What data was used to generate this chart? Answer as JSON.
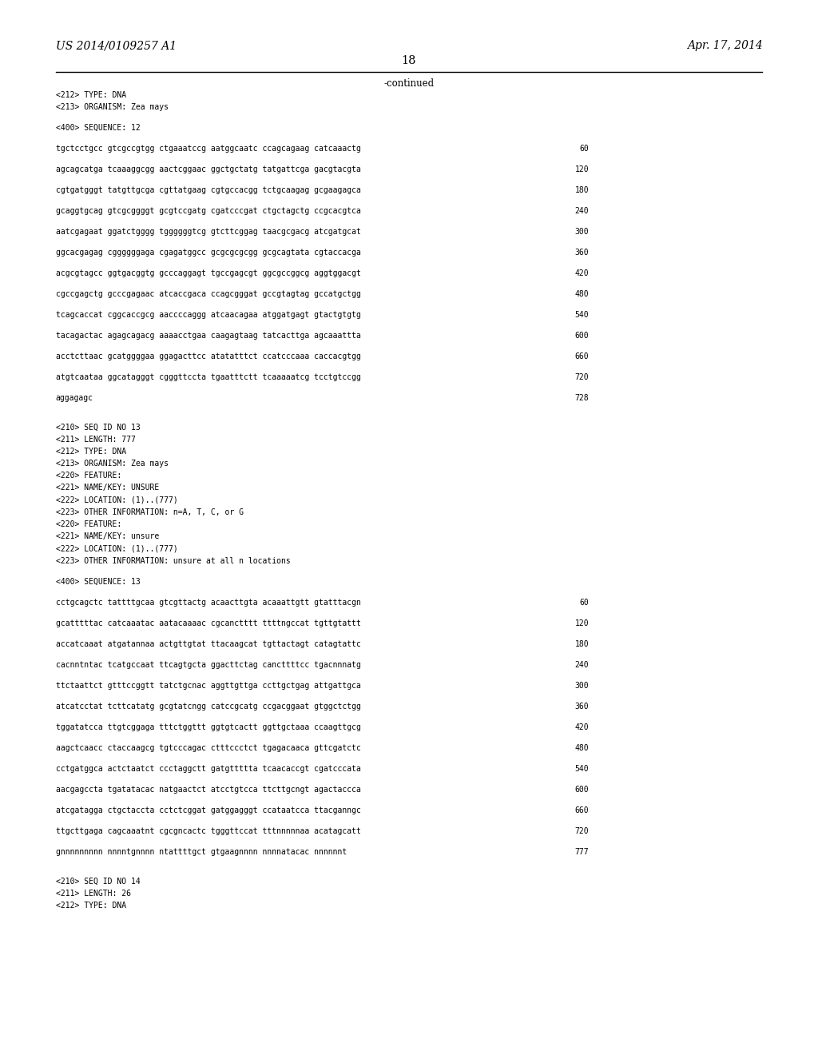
{
  "bg_color": "#ffffff",
  "top_left": "US 2014/0109257 A1",
  "top_right": "Apr. 17, 2014",
  "page_number": "18",
  "continued": "-continued",
  "content": [
    {
      "type": "text",
      "text": "<212> TYPE: DNA"
    },
    {
      "type": "text",
      "text": "<213> ORGANISM: Zea mays"
    },
    {
      "type": "blank"
    },
    {
      "type": "text",
      "text": "<400> SEQUENCE: 12"
    },
    {
      "type": "blank"
    },
    {
      "type": "seq",
      "text": "tgctcctgcc gtcgccgtgg ctgaaatccg aatggcaatc ccagcagaag catcaaactg",
      "num": "60"
    },
    {
      "type": "blank"
    },
    {
      "type": "seq",
      "text": "agcagcatga tcaaaggcgg aactcggaac ggctgctatg tatgattcga gacgtacgta",
      "num": "120"
    },
    {
      "type": "blank"
    },
    {
      "type": "seq",
      "text": "cgtgatgggt tatgttgcga cgttatgaag cgtgccacgg tctgcaagag gcgaagagca",
      "num": "180"
    },
    {
      "type": "blank"
    },
    {
      "type": "seq",
      "text": "gcaggtgcag gtcgcggggt gcgtccgatg cgatcccgat ctgctagctg ccgcacgtca",
      "num": "240"
    },
    {
      "type": "blank"
    },
    {
      "type": "seq",
      "text": "aatcgagaat ggatctgggg tggggggtcg gtcttcggag taacgcgacg atcgatgcat",
      "num": "300"
    },
    {
      "type": "blank"
    },
    {
      "type": "seq",
      "text": "ggcacgagag cggggggaga cgagatggcc gcgcgcgcgg gcgcagtata cgtaccacga",
      "num": "360"
    },
    {
      "type": "blank"
    },
    {
      "type": "seq",
      "text": "acgcgtagcc ggtgacggtg gcccaggagt tgccgagcgt ggcgccggcg aggtggacgt",
      "num": "420"
    },
    {
      "type": "blank"
    },
    {
      "type": "seq",
      "text": "cgccgagctg gcccgagaac atcaccgaca ccagcgggat gccgtagtag gccatgctgg",
      "num": "480"
    },
    {
      "type": "blank"
    },
    {
      "type": "seq",
      "text": "tcagcaccat cggcaccgcg aaccccaggg atcaacagaa atggatgagt gtactgtgtg",
      "num": "540"
    },
    {
      "type": "blank"
    },
    {
      "type": "seq",
      "text": "tacagactac agagcagacg aaaacctgaa caagagtaag tatcacttga agcaaattta",
      "num": "600"
    },
    {
      "type": "blank"
    },
    {
      "type": "seq",
      "text": "acctcttaac gcatggggaa ggagacttcc atatatttct ccatcccaaa caccacgtgg",
      "num": "660"
    },
    {
      "type": "blank"
    },
    {
      "type": "seq",
      "text": "atgtcaataa ggcatagggt cgggttccta tgaatttctt tcaaaaatcg tcctgtccgg",
      "num": "720"
    },
    {
      "type": "blank"
    },
    {
      "type": "seq",
      "text": "aggagagc",
      "num": "728"
    },
    {
      "type": "blank"
    },
    {
      "type": "blank"
    },
    {
      "type": "text",
      "text": "<210> SEQ ID NO 13"
    },
    {
      "type": "text",
      "text": "<211> LENGTH: 777"
    },
    {
      "type": "text",
      "text": "<212> TYPE: DNA"
    },
    {
      "type": "text",
      "text": "<213> ORGANISM: Zea mays"
    },
    {
      "type": "text",
      "text": "<220> FEATURE:"
    },
    {
      "type": "text",
      "text": "<221> NAME/KEY: UNSURE"
    },
    {
      "type": "text",
      "text": "<222> LOCATION: (1)..(777)"
    },
    {
      "type": "text",
      "text": "<223> OTHER INFORMATION: n=A, T, C, or G"
    },
    {
      "type": "text",
      "text": "<220> FEATURE:"
    },
    {
      "type": "text",
      "text": "<221> NAME/KEY: unsure"
    },
    {
      "type": "text",
      "text": "<222> LOCATION: (1)..(777)"
    },
    {
      "type": "text",
      "text": "<223> OTHER INFORMATION: unsure at all n locations"
    },
    {
      "type": "blank"
    },
    {
      "type": "text",
      "text": "<400> SEQUENCE: 13"
    },
    {
      "type": "blank"
    },
    {
      "type": "seq",
      "text": "cctgcagctc tattttgcaa gtcgttactg acaacttgta acaaattgtt gtatttacgn",
      "num": "60"
    },
    {
      "type": "blank"
    },
    {
      "type": "seq",
      "text": "gcatttttac catcaaatac aatacaaaac cgcanctttt ttttngccat tgttgtattt",
      "num": "120"
    },
    {
      "type": "blank"
    },
    {
      "type": "seq",
      "text": "accatcaaat atgatannaa actgttgtat ttacaagcat tgttactagt catagtattc",
      "num": "180"
    },
    {
      "type": "blank"
    },
    {
      "type": "seq",
      "text": "cacnntntac tcatgccaat ttcagtgcta ggacttctag cancttttcc tgacnnnatg",
      "num": "240"
    },
    {
      "type": "blank"
    },
    {
      "type": "seq",
      "text": "ttctaattct gtttccggtt tatctgcnac aggttgttga ccttgctgag attgattgca",
      "num": "300"
    },
    {
      "type": "blank"
    },
    {
      "type": "seq",
      "text": "atcatcctat tcttcatatg gcgtatcngg catccgcatg ccgacggaat gtggctctgg",
      "num": "360"
    },
    {
      "type": "blank"
    },
    {
      "type": "seq",
      "text": "tggatatcca ttgtcggaga tttctggttt ggtgtcactt ggttgctaaa ccaagttgcg",
      "num": "420"
    },
    {
      "type": "blank"
    },
    {
      "type": "seq",
      "text": "aagctcaacc ctaccaagcg tgtcccagac ctttccctct tgagacaaca gttcgatctc",
      "num": "480"
    },
    {
      "type": "blank"
    },
    {
      "type": "seq",
      "text": "cctgatggca actctaatct ccctaggctt gatgttttta tcaacaccgt cgatcccata",
      "num": "540"
    },
    {
      "type": "blank"
    },
    {
      "type": "seq",
      "text": "aacgagccta tgatatacac natgaactct atcctgtcca ttcttgcngt agactaccca",
      "num": "600"
    },
    {
      "type": "blank"
    },
    {
      "type": "seq",
      "text": "atcgatagga ctgctaccta cctctcggat gatggagggt ccataatcca ttacganngc",
      "num": "660"
    },
    {
      "type": "blank"
    },
    {
      "type": "seq",
      "text": "ttgcttgaga cagcaaatnt cgcgncactc tgggttccat tttnnnnnaa acatagcatt",
      "num": "720"
    },
    {
      "type": "blank"
    },
    {
      "type": "seq",
      "text": "gnnnnnnnnn nnnntgnnnn ntattttgct gtgaagnnnn nnnnatacac nnnnnnt",
      "num": "777"
    },
    {
      "type": "blank"
    },
    {
      "type": "blank"
    },
    {
      "type": "text",
      "text": "<210> SEQ ID NO 14"
    },
    {
      "type": "text",
      "text": "<211> LENGTH: 26"
    },
    {
      "type": "text",
      "text": "<212> TYPE: DNA"
    }
  ]
}
